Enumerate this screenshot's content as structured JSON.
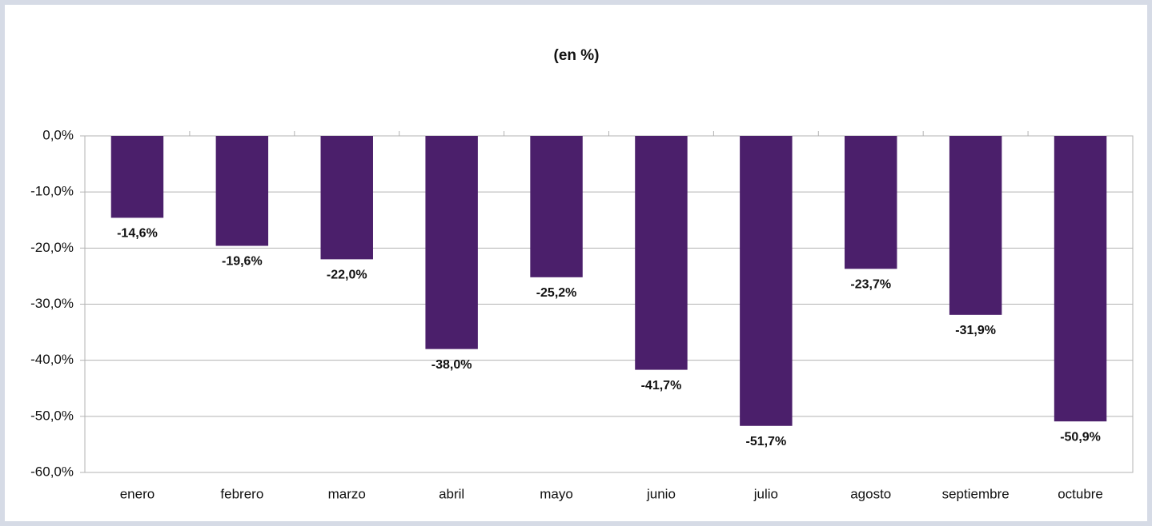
{
  "chart_data": {
    "type": "bar",
    "title": "(en %)",
    "categories": [
      "enero",
      "febrero",
      "marzo",
      "abril",
      "mayo",
      "junio",
      "julio",
      "agosto",
      "septiembre",
      "octubre"
    ],
    "values": [
      -14.6,
      -19.6,
      -22.0,
      -38.0,
      -25.2,
      -41.7,
      -51.7,
      -23.7,
      -31.9,
      -50.9
    ],
    "value_labels": [
      "-14,6%",
      "-19,6%",
      "-22,0%",
      "-38,0%",
      "-25,2%",
      "-41,7%",
      "-51,7%",
      "-23,7%",
      "-31,9%",
      "-50,9%"
    ],
    "color": "#4b1f6b",
    "ylim": [
      -60,
      0
    ],
    "yticks": [
      {
        "value": 0,
        "label": "0,0%"
      },
      {
        "value": -10,
        "label": "-10,0%"
      },
      {
        "value": -20,
        "label": "-20,0%"
      },
      {
        "value": -30,
        "label": "-30,0%"
      },
      {
        "value": -40,
        "label": "-40,0%"
      },
      {
        "value": -50,
        "label": "-50,0%"
      },
      {
        "value": -60,
        "label": "-60,0%"
      }
    ],
    "grid": true
  }
}
